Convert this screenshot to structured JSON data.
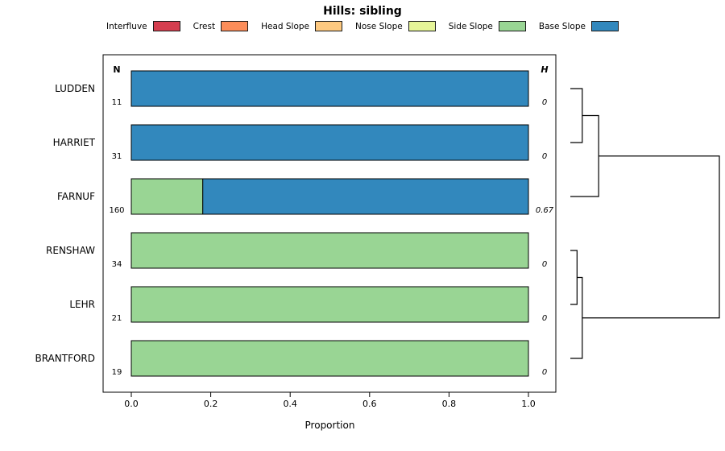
{
  "chart_data": {
    "type": "bar",
    "orientation": "horizontal",
    "stacked": true,
    "title": "Hills: sibling",
    "xlabel": "Proportion",
    "xlim": [
      0,
      1
    ],
    "xticks": [
      "0.0",
      "0.2",
      "0.4",
      "0.6",
      "0.8",
      "1.0"
    ],
    "legend_position": "top",
    "n_column_header": "N",
    "h_column_header": "H",
    "legend": [
      {
        "label": "Interfluve",
        "color": "#D53E4F"
      },
      {
        "label": "Crest",
        "color": "#FC8D59"
      },
      {
        "label": "Head Slope",
        "color": "#FEC980"
      },
      {
        "label": "Nose Slope",
        "color": "#E6F598"
      },
      {
        "label": "Side Slope",
        "color": "#99D594"
      },
      {
        "label": "Base Slope",
        "color": "#3288BD"
      }
    ],
    "rows": [
      {
        "label": "LUDDEN",
        "n": "11",
        "h": "0",
        "segments": [
          {
            "category": "Base Slope",
            "value": 1.0
          }
        ]
      },
      {
        "label": "HARRIET",
        "n": "31",
        "h": "0",
        "segments": [
          {
            "category": "Base Slope",
            "value": 1.0
          }
        ]
      },
      {
        "label": "FARNUF",
        "n": "160",
        "h": "0.67",
        "segments": [
          {
            "category": "Side Slope",
            "value": 0.18
          },
          {
            "category": "Base Slope",
            "value": 0.82
          }
        ]
      },
      {
        "label": "RENSHAW",
        "n": "34",
        "h": "0",
        "segments": [
          {
            "category": "Side Slope",
            "value": 1.0
          }
        ]
      },
      {
        "label": "LEHR",
        "n": "21",
        "h": "0",
        "segments": [
          {
            "category": "Side Slope",
            "value": 1.0
          }
        ]
      },
      {
        "label": "BRANTFORD",
        "n": "19",
        "h": "0",
        "segments": [
          {
            "category": "Side Slope",
            "value": 1.0
          }
        ]
      }
    ],
    "dendrogram": {
      "merges": [
        {
          "a": "LUDDEN",
          "b": "HARRIET",
          "height": 0.08
        },
        {
          "a": "m0",
          "b": "FARNUF",
          "height": 0.19
        },
        {
          "a": "RENSHAW",
          "b": "LEHR",
          "height": 0.045
        },
        {
          "a": "m2",
          "b": "BRANTFORD",
          "height": 0.08
        },
        {
          "a": "m1",
          "b": "m3",
          "height": 1.0
        }
      ]
    }
  }
}
